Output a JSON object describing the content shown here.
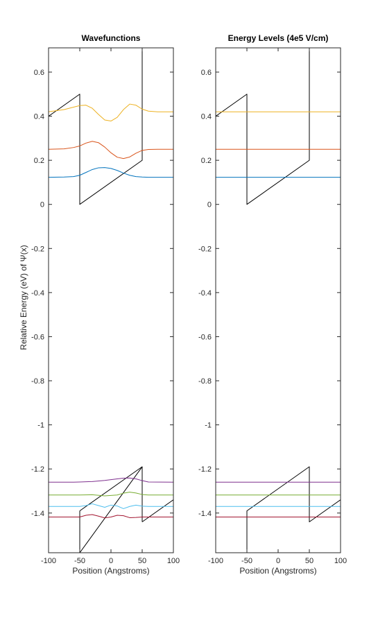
{
  "colors": {
    "potential": "#000000",
    "level1": "#0072BD",
    "level2": "#D95319",
    "level3": "#EDB120",
    "level4": "#7E2F8E",
    "level5": "#77AC30",
    "level6": "#4DBEEE",
    "level7": "#A2142F"
  },
  "shared": {
    "ylabel": "Relative Energy (eV) of Ψ(x)",
    "xlabel": "Position (Angstroms)"
  },
  "chart_data": [
    {
      "type": "line",
      "title": "Wavefunctions",
      "xlabel": "Position (Angstroms)",
      "ylabel": "Relative Energy (eV) of Ψ(x)",
      "xlim": [
        -100,
        100
      ],
      "ylim": [
        -1.58,
        0.71
      ],
      "xticks": [
        -100,
        -50,
        0,
        50,
        100
      ],
      "yticks": [
        0.6,
        0.4,
        0.2,
        0,
        -0.2,
        -0.4,
        -0.6,
        -0.8,
        -1,
        -1.2,
        -1.4
      ],
      "grid": false,
      "series": [
        {
          "role": "potential",
          "color": "potential",
          "x": [
            -100,
            -50,
            -50,
            50,
            50,
            50,
            50,
            100
          ],
          "y": [
            0.4,
            0.5,
            0,
            0.2,
            0.71,
            null,
            -1.44,
            -1.34
          ]
        },
        {
          "role": "potential",
          "color": "potential",
          "x": [
            -100,
            -50,
            -50,
            50,
            50,
            50
          ],
          "y": [
            null,
            -1.39,
            -1.58,
            -1.19,
            -1.44,
            -1.44
          ]
        },
        {
          "role": "potential",
          "color": "potential",
          "x": [
            -50,
            50
          ],
          "y": [
            -1.39,
            -1.19
          ]
        },
        {
          "role": "wavefunction",
          "color": "level1",
          "x": [
            -100,
            -75,
            -60,
            -50,
            -40,
            -30,
            -20,
            -10,
            0,
            10,
            20,
            30,
            40,
            50,
            60,
            75,
            100
          ],
          "y": [
            0.123,
            0.124,
            0.126,
            0.132,
            0.145,
            0.158,
            0.166,
            0.167,
            0.163,
            0.154,
            0.142,
            0.132,
            0.126,
            0.124,
            0.123,
            0.123,
            0.123
          ]
        },
        {
          "role": "wavefunction",
          "color": "level2",
          "x": [
            -100,
            -75,
            -60,
            -50,
            -40,
            -30,
            -20,
            -10,
            0,
            10,
            20,
            30,
            40,
            50,
            60,
            75,
            100
          ],
          "y": [
            0.25,
            0.252,
            0.258,
            0.265,
            0.278,
            0.286,
            0.28,
            0.26,
            0.234,
            0.214,
            0.208,
            0.215,
            0.232,
            0.245,
            0.249,
            0.25,
            0.25
          ]
        },
        {
          "role": "wavefunction",
          "color": "level3",
          "x": [
            -100,
            -75,
            -60,
            -50,
            -40,
            -30,
            -20,
            -10,
            0,
            10,
            20,
            30,
            40,
            50,
            60,
            75,
            100
          ],
          "y": [
            0.42,
            0.43,
            0.441,
            0.448,
            0.45,
            0.436,
            0.408,
            0.383,
            0.378,
            0.395,
            0.43,
            0.455,
            0.45,
            0.432,
            0.423,
            0.42,
            0.42
          ]
        },
        {
          "role": "wavefunction",
          "color": "level4",
          "x": [
            -100,
            -60,
            -50,
            -30,
            -10,
            10,
            20,
            30,
            40,
            50,
            60,
            100
          ],
          "y": [
            -1.26,
            -1.26,
            -1.259,
            -1.257,
            -1.252,
            -1.245,
            -1.242,
            -1.241,
            -1.245,
            -1.253,
            -1.259,
            -1.26
          ]
        },
        {
          "role": "wavefunction",
          "color": "level5",
          "x": [
            -100,
            -60,
            -50,
            -30,
            -10,
            10,
            20,
            30,
            40,
            50,
            60,
            100
          ],
          "y": [
            -1.318,
            -1.318,
            -1.318,
            -1.317,
            -1.322,
            -1.318,
            -1.31,
            -1.305,
            -1.309,
            -1.316,
            -1.318,
            -1.318
          ]
        },
        {
          "role": "wavefunction",
          "color": "level6",
          "x": [
            -100,
            -60,
            -50,
            -40,
            -30,
            -20,
            -10,
            0,
            10,
            20,
            30,
            40,
            50,
            60,
            100
          ],
          "y": [
            -1.37,
            -1.37,
            -1.37,
            -1.366,
            -1.358,
            -1.366,
            -1.374,
            -1.364,
            -1.368,
            -1.38,
            -1.37,
            -1.364,
            -1.369,
            -1.37,
            -1.37
          ]
        },
        {
          "role": "wavefunction",
          "color": "level7",
          "x": [
            -100,
            -60,
            -50,
            -40,
            -30,
            -20,
            -10,
            0,
            10,
            20,
            30,
            40,
            50,
            60,
            100
          ],
          "y": [
            -1.418,
            -1.418,
            -1.418,
            -1.41,
            -1.407,
            -1.414,
            -1.422,
            -1.418,
            -1.41,
            -1.412,
            -1.421,
            -1.42,
            -1.418,
            -1.418,
            -1.418
          ]
        }
      ]
    },
    {
      "type": "line",
      "title": "Energy Levels (4e5 V/cm)",
      "xlabel": "Position (Angstroms)",
      "ylabel": "",
      "xlim": [
        -100,
        100
      ],
      "ylim": [
        -1.58,
        0.71
      ],
      "xticks": [
        -100,
        -50,
        0,
        50,
        100
      ],
      "yticks": [
        0.6,
        0.4,
        0.2,
        0,
        -0.2,
        -0.4,
        -0.6,
        -0.8,
        -1,
        -1.2,
        -1.4
      ],
      "grid": false,
      "series": [
        {
          "role": "potential",
          "color": "potential",
          "x": [
            -100,
            -50,
            -50,
            50,
            50
          ],
          "y": [
            0.4,
            0.5,
            0,
            0.2,
            0.71
          ]
        },
        {
          "role": "potential",
          "color": "potential",
          "x": [
            -50,
            -50,
            50,
            50,
            100
          ],
          "y": [
            -1.58,
            -1.39,
            -1.19,
            -1.44,
            -1.34
          ]
        },
        {
          "role": "level",
          "color": "level1",
          "x": [
            -100,
            100
          ],
          "y": [
            0.123,
            0.123
          ]
        },
        {
          "role": "level",
          "color": "level2",
          "x": [
            -100,
            100
          ],
          "y": [
            0.25,
            0.25
          ]
        },
        {
          "role": "level",
          "color": "level3",
          "x": [
            -100,
            100
          ],
          "y": [
            0.42,
            0.42
          ]
        },
        {
          "role": "level",
          "color": "level4",
          "x": [
            -100,
            100
          ],
          "y": [
            -1.26,
            -1.26
          ]
        },
        {
          "role": "level",
          "color": "level5",
          "x": [
            -100,
            100
          ],
          "y": [
            -1.318,
            -1.318
          ]
        },
        {
          "role": "level",
          "color": "level6",
          "x": [
            -100,
            100
          ],
          "y": [
            -1.37,
            -1.37
          ]
        },
        {
          "role": "level",
          "color": "level7",
          "x": [
            -100,
            100
          ],
          "y": [
            -1.418,
            -1.418
          ]
        }
      ]
    }
  ]
}
